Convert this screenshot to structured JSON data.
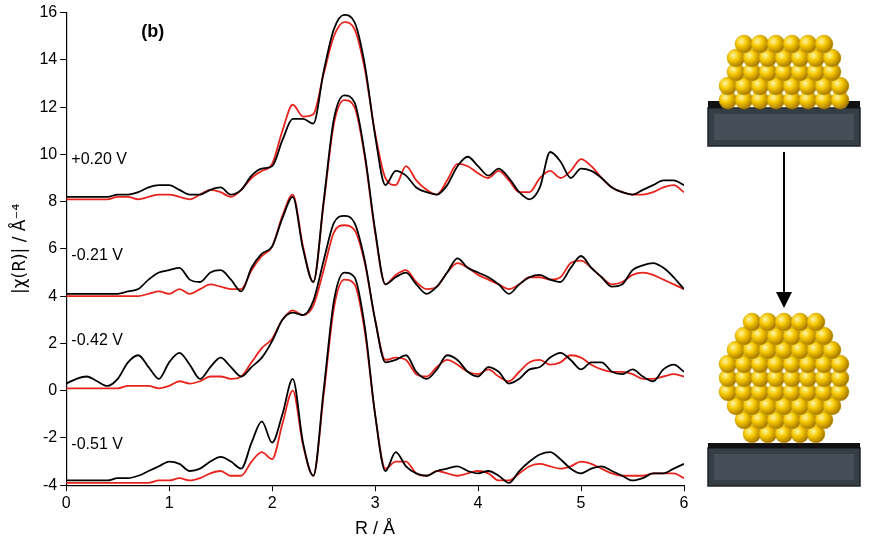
{
  "chart_data": {
    "type": "line",
    "panel_label": "(b)",
    "x_label": "R / Å",
    "y_label": "|χ(R)| / Å⁻⁴",
    "xlim": [
      0,
      6
    ],
    "xticks": [
      0,
      1,
      2,
      3,
      4,
      5,
      6
    ],
    "ylim": [
      -4,
      16
    ],
    "yticks": [
      -4,
      -2,
      0,
      2,
      4,
      6,
      8,
      10,
      12,
      14,
      16
    ],
    "grid": false,
    "x": [
      0.0,
      0.1,
      0.2,
      0.3,
      0.4,
      0.5,
      0.6,
      0.7,
      0.8,
      0.9,
      1.0,
      1.1,
      1.2,
      1.3,
      1.4,
      1.5,
      1.6,
      1.7,
      1.8,
      1.9,
      2.0,
      2.1,
      2.2,
      2.3,
      2.4,
      2.5,
      2.6,
      2.7,
      2.8,
      2.9,
      3.0,
      3.1,
      3.2,
      3.3,
      3.4,
      3.5,
      3.6,
      3.7,
      3.8,
      3.9,
      4.0,
      4.1,
      4.2,
      4.3,
      4.4,
      4.5,
      4.6,
      4.7,
      4.8,
      4.9,
      5.0,
      5.1,
      5.2,
      5.3,
      5.4,
      5.5,
      5.6,
      5.7,
      5.8,
      5.9,
      6.0
    ],
    "series": [
      {
        "color": "#000000",
        "values": [
          8.2,
          8.2,
          8.2,
          8.2,
          8.2,
          8.3,
          8.3,
          8.4,
          8.6,
          8.7,
          8.7,
          8.5,
          8.3,
          8.3,
          8.5,
          8.6,
          8.3,
          8.5,
          9.1,
          9.4,
          9.5,
          10.6,
          11.5,
          11.5,
          11.3,
          13.5,
          15.3,
          15.9,
          15.6,
          13.8,
          10.8,
          8.7,
          9.3,
          9.1,
          8.6,
          8.4,
          8.3,
          8.7,
          9.5,
          9.9,
          9.5,
          9.1,
          9.4,
          9.0,
          8.4,
          8.1,
          8.6,
          10.1,
          9.7,
          9.0,
          9.4,
          9.3,
          9.0,
          8.6,
          8.4,
          8.3,
          8.5,
          8.7,
          8.9,
          8.9,
          8.7
        ]
      },
      {
        "color": "#e8231c",
        "values": [
          8.1,
          8.1,
          8.1,
          8.1,
          8.1,
          8.2,
          8.2,
          8.1,
          8.2,
          8.3,
          8.3,
          8.2,
          8.1,
          8.3,
          8.5,
          8.4,
          8.2,
          8.5,
          9.0,
          9.3,
          9.6,
          11.0,
          12.1,
          11.6,
          11.7,
          13.4,
          15.0,
          15.6,
          15.3,
          13.6,
          10.9,
          9.0,
          8.7,
          9.5,
          8.9,
          8.5,
          8.3,
          8.9,
          9.6,
          9.5,
          9.2,
          9.0,
          9.3,
          8.9,
          8.4,
          8.4,
          9.0,
          9.3,
          9.0,
          9.3,
          9.8,
          9.5,
          9.0,
          8.6,
          8.4,
          8.3,
          8.3,
          8.4,
          8.6,
          8.7,
          8.4
        ]
      },
      {
        "color": "#000000",
        "values": [
          4.1,
          4.1,
          4.1,
          4.1,
          4.1,
          4.1,
          4.2,
          4.3,
          4.7,
          5.0,
          5.1,
          5.2,
          4.7,
          4.6,
          5.0,
          5.1,
          4.7,
          4.2,
          5.2,
          5.8,
          6.1,
          7.3,
          8.2,
          6.0,
          4.6,
          8.0,
          11.5,
          12.5,
          12.2,
          10.0,
          6.8,
          4.5,
          4.8,
          5.0,
          4.5,
          4.1,
          4.4,
          5.0,
          5.6,
          5.2,
          5.0,
          4.8,
          4.5,
          4.1,
          4.5,
          4.8,
          4.9,
          4.7,
          4.6,
          5.2,
          5.7,
          5.2,
          4.8,
          4.4,
          4.5,
          5.1,
          5.3,
          5.4,
          5.2,
          4.8,
          4.3
        ]
      },
      {
        "color": "#e8231c",
        "values": [
          4.0,
          4.0,
          4.0,
          4.0,
          4.0,
          4.0,
          4.0,
          4.0,
          4.1,
          4.2,
          4.1,
          4.3,
          4.1,
          4.3,
          4.5,
          4.4,
          4.3,
          4.3,
          5.1,
          5.7,
          6.1,
          7.4,
          8.3,
          6.1,
          4.6,
          7.9,
          11.3,
          12.3,
          12.0,
          9.9,
          6.7,
          4.5,
          4.9,
          5.1,
          4.6,
          4.3,
          4.4,
          5.0,
          5.4,
          5.2,
          4.9,
          4.7,
          4.5,
          4.3,
          4.5,
          4.8,
          4.8,
          4.7,
          4.8,
          5.4,
          5.5,
          5.2,
          4.8,
          4.5,
          4.6,
          4.9,
          5.0,
          4.9,
          4.7,
          4.5,
          4.3
        ]
      },
      {
        "color": "#000000",
        "values": [
          0.3,
          0.5,
          0.6,
          0.4,
          0.2,
          0.5,
          1.2,
          1.5,
          1.0,
          0.5,
          1.2,
          1.6,
          1.1,
          0.5,
          1.0,
          1.4,
          1.0,
          0.6,
          1.0,
          1.4,
          2.1,
          3.0,
          3.3,
          3.2,
          3.8,
          5.5,
          7.1,
          7.4,
          7.1,
          5.5,
          3.0,
          1.2,
          1.3,
          1.5,
          0.8,
          0.5,
          0.9,
          1.5,
          1.3,
          0.8,
          0.6,
          1.0,
          0.8,
          0.3,
          0.5,
          0.9,
          1.0,
          1.4,
          1.6,
          1.3,
          0.9,
          1.2,
          1.2,
          0.8,
          0.7,
          0.9,
          0.6,
          0.4,
          0.9,
          1.1,
          0.8
        ]
      },
      {
        "color": "#e8231c",
        "values": [
          0.1,
          0.1,
          0.1,
          0.1,
          0.1,
          0.1,
          0.2,
          0.2,
          0.2,
          0.1,
          0.2,
          0.4,
          0.3,
          0.4,
          0.6,
          0.6,
          0.5,
          0.6,
          1.2,
          1.8,
          2.2,
          3.0,
          3.4,
          3.2,
          3.6,
          5.1,
          6.7,
          7.0,
          6.8,
          5.4,
          3.0,
          1.3,
          1.4,
          1.3,
          0.7,
          0.6,
          1.0,
          1.3,
          1.1,
          0.8,
          0.7,
          0.9,
          0.6,
          0.4,
          0.8,
          1.2,
          1.3,
          1.1,
          1.2,
          1.5,
          1.4,
          1.1,
          0.9,
          0.8,
          0.8,
          0.7,
          0.5,
          0.5,
          0.6,
          0.7,
          0.6
        ]
      },
      {
        "color": "#000000",
        "values": [
          -3.8,
          -3.8,
          -3.8,
          -3.8,
          -3.8,
          -3.7,
          -3.7,
          -3.6,
          -3.4,
          -3.2,
          -3.0,
          -3.1,
          -3.4,
          -3.3,
          -3.0,
          -2.8,
          -3.0,
          -3.3,
          -2.2,
          -1.3,
          -2.2,
          -1.0,
          0.5,
          -2.2,
          -3.6,
          0.0,
          3.8,
          5.0,
          4.8,
          2.7,
          -1.0,
          -3.4,
          -2.6,
          -3.2,
          -3.5,
          -3.6,
          -3.4,
          -3.3,
          -3.2,
          -3.4,
          -3.5,
          -3.4,
          -3.6,
          -3.9,
          -3.4,
          -3.0,
          -2.7,
          -2.6,
          -2.9,
          -3.3,
          -3.5,
          -3.3,
          -3.2,
          -3.4,
          -3.6,
          -3.8,
          -3.7,
          -3.5,
          -3.5,
          -3.3,
          -3.1
        ]
      },
      {
        "color": "#e8231c",
        "values": [
          -3.9,
          -3.9,
          -3.9,
          -3.9,
          -3.9,
          -3.9,
          -3.9,
          -3.9,
          -3.9,
          -3.8,
          -3.8,
          -3.7,
          -3.8,
          -3.7,
          -3.5,
          -3.4,
          -3.6,
          -3.6,
          -3.0,
          -2.6,
          -2.9,
          -1.4,
          0.0,
          -2.3,
          -3.6,
          -0.2,
          3.5,
          4.7,
          4.5,
          2.5,
          -1.0,
          -3.3,
          -3.0,
          -3.0,
          -3.5,
          -3.6,
          -3.4,
          -3.5,
          -3.6,
          -3.5,
          -3.4,
          -3.5,
          -3.8,
          -3.8,
          -3.5,
          -3.2,
          -3.1,
          -3.2,
          -3.3,
          -3.2,
          -3.0,
          -3.1,
          -3.3,
          -3.5,
          -3.6,
          -3.6,
          -3.6,
          -3.5,
          -3.5,
          -3.5,
          -3.7
        ]
      }
    ],
    "annotations": [
      {
        "text": "+0.20 V",
        "x": 0.05,
        "y": 9.8
      },
      {
        "text": "-0.21 V",
        "x": 0.05,
        "y": 5.7
      },
      {
        "text": "-0.42 V",
        "x": 0.05,
        "y": 2.1
      },
      {
        "text": "-0.51 V",
        "x": 0.05,
        "y": -2.3
      }
    ]
  }
}
